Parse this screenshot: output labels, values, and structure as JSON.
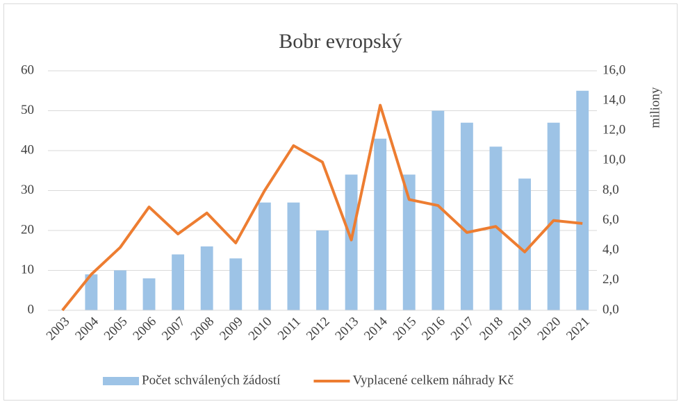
{
  "chart_data": {
    "type": "combo",
    "title": "Bobr evropský",
    "categories": [
      "2003",
      "2004",
      "2005",
      "2006",
      "2007",
      "2008",
      "2009",
      "2010",
      "2011",
      "2012",
      "2013",
      "2014",
      "2015",
      "2016",
      "2017",
      "2018",
      "2019",
      "2020",
      "2021"
    ],
    "series": [
      {
        "name": "Počet schválených žádostí",
        "type": "bar",
        "color": "#9dc3e6",
        "values": [
          0,
          9,
          10,
          8,
          14,
          16,
          13,
          27,
          27,
          20,
          34,
          43,
          34,
          50,
          47,
          41,
          33,
          47,
          55
        ]
      },
      {
        "name": "Vyplacené celkem náhrady Kč",
        "type": "line",
        "color": "#ed7d31",
        "axis": "y2",
        "values": [
          0,
          2.4,
          4.2,
          6.9,
          5.1,
          6.5,
          4.5,
          8.0,
          11.0,
          9.9,
          4.7,
          13.7,
          7.4,
          7.0,
          5.2,
          5.6,
          3.9,
          6.0,
          5.8
        ]
      }
    ],
    "ylim": [
      0,
      60
    ],
    "yticks": [
      0,
      10,
      20,
      30,
      40,
      50,
      60
    ],
    "y2lim": [
      0,
      16
    ],
    "y2ticks": [
      {
        "value": 0,
        "label": "0,0"
      },
      {
        "value": 2,
        "label": "2,0"
      },
      {
        "value": 4,
        "label": "4,0"
      },
      {
        "value": 6,
        "label": "6,0"
      },
      {
        "value": 8,
        "label": "8,0"
      },
      {
        "value": 10,
        "label": "10,0"
      },
      {
        "value": 12,
        "label": "12,0"
      },
      {
        "value": 14,
        "label": "14,0"
      },
      {
        "value": 16,
        "label": "16,0"
      }
    ],
    "y2label": "miliony",
    "grid": true,
    "legend": "bottom"
  }
}
